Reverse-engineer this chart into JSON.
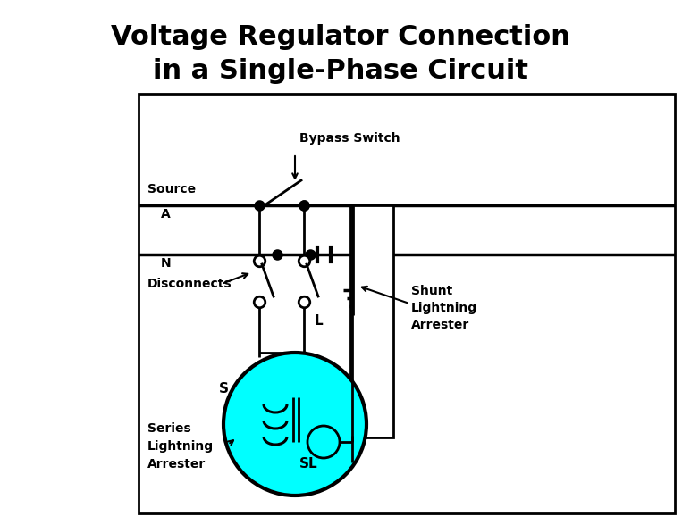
{
  "title_line1": "Voltage Regulator Connection",
  "title_line2": "in a Single-Phase Circuit",
  "title_fontsize": 22,
  "title_fontweight": "bold",
  "bg_color": "#ffffff",
  "line_color": "#000000",
  "cyan_color": "#00ffff",
  "labels": {
    "bypass_switch": "Bypass Switch",
    "source": "Source",
    "A": "A",
    "N": "N",
    "disconnects": "Disconnects",
    "L": "L",
    "S": "S",
    "SL": "SL",
    "shunt": "Shunt\nLightning\nArrester",
    "series": "Series\nLightning\nArrester"
  },
  "fig_width": 7.63,
  "fig_height": 5.88,
  "dpi": 100
}
